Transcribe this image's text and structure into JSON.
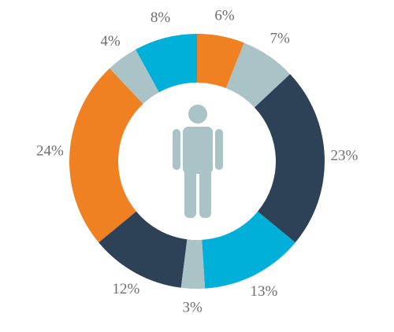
{
  "chart_data": {
    "type": "donut",
    "values": [
      6,
      7,
      23,
      13,
      3,
      12,
      24,
      4,
      8
    ],
    "value_labels": [
      "6%",
      "7%",
      "23%",
      "13%",
      "3%",
      "12%",
      "24%",
      "4%",
      "8%"
    ],
    "colors": [
      "#f08122",
      "#a9c3c7",
      "#2e4257",
      "#00b0d8",
      "#a9c3c7",
      "#2e4257",
      "#f08122",
      "#a9c3c7",
      "#00b0d8"
    ]
  }
}
